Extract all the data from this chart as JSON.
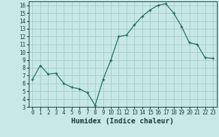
{
  "x": [
    0,
    1,
    2,
    3,
    4,
    5,
    6,
    7,
    8,
    9,
    10,
    11,
    12,
    13,
    14,
    15,
    16,
    17,
    18,
    19,
    20,
    21,
    22,
    23
  ],
  "y": [
    6.5,
    8.3,
    7.2,
    7.3,
    6.0,
    5.5,
    5.3,
    4.8,
    3.2,
    6.5,
    9.0,
    12.0,
    12.2,
    13.5,
    14.6,
    15.4,
    16.0,
    16.2,
    15.0,
    13.3,
    11.2,
    11.0,
    9.3,
    9.2
  ],
  "line_color": "#1a6b5a",
  "marker_color": "#1a6b5a",
  "bg_color": "#c8e8e8",
  "grid_color": "#a8cccc",
  "xlabel": "Humidex (Indice chaleur)",
  "xlim": [
    -0.5,
    23.5
  ],
  "ylim": [
    3,
    16.5
  ],
  "yticks": [
    3,
    4,
    5,
    6,
    7,
    8,
    9,
    10,
    11,
    12,
    13,
    14,
    15,
    16
  ],
  "xticks": [
    0,
    1,
    2,
    3,
    4,
    5,
    6,
    7,
    8,
    9,
    10,
    11,
    12,
    13,
    14,
    15,
    16,
    17,
    18,
    19,
    20,
    21,
    22,
    23
  ],
  "tick_fontsize": 5.5,
  "xlabel_fontsize": 7.5
}
